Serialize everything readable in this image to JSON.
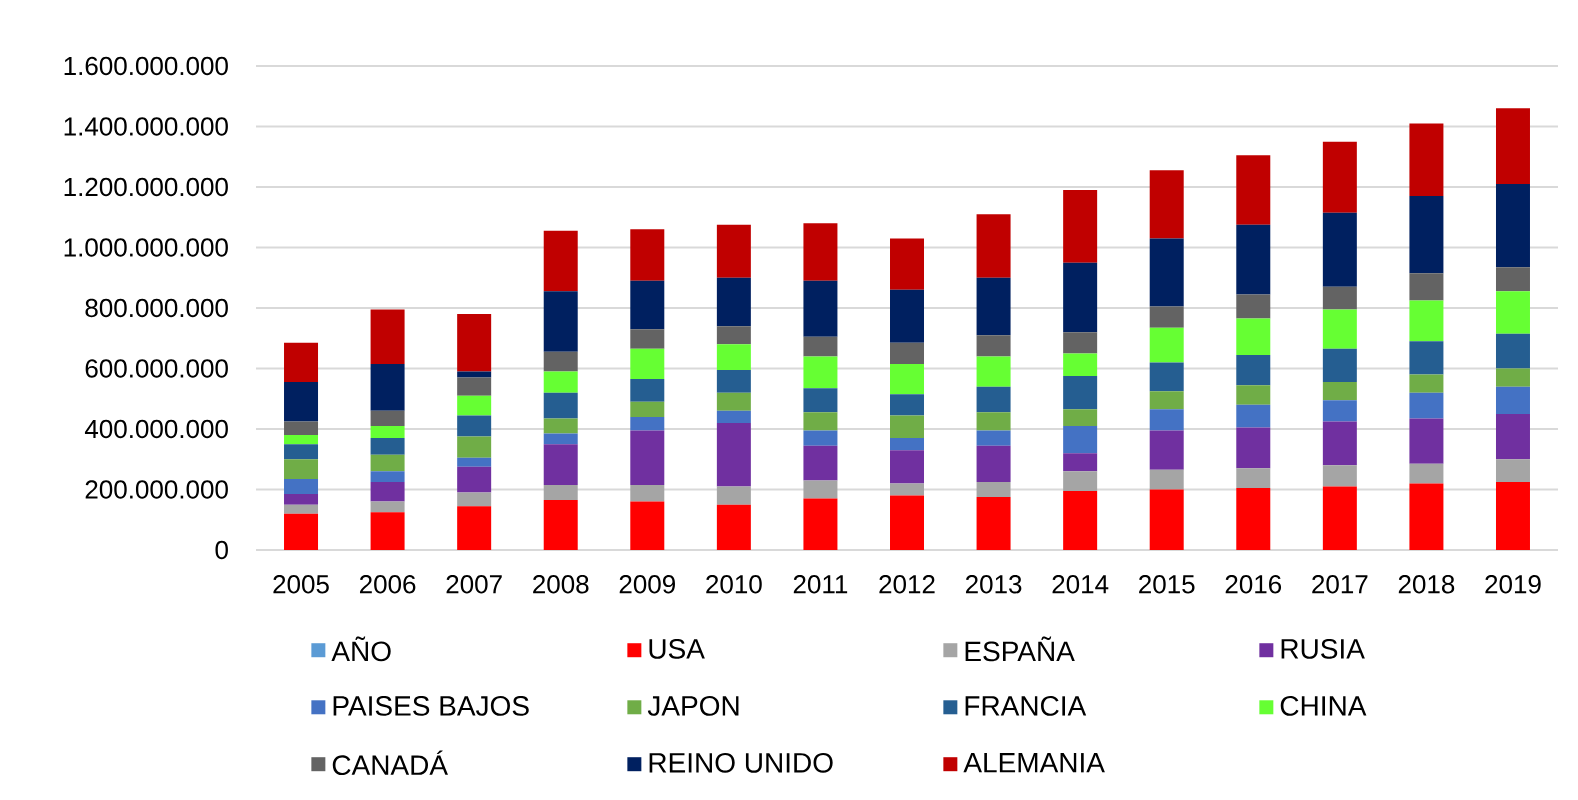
{
  "chart_data": {
    "type": "bar",
    "stacked": true,
    "categories": [
      "2005",
      "2006",
      "2007",
      "2008",
      "2009",
      "2010",
      "2011",
      "2012",
      "2013",
      "2014",
      "2015",
      "2016",
      "2017",
      "2018",
      "2019"
    ],
    "series": [
      {
        "name": "AÑO",
        "color": "#5B9BD5",
        "values": [
          null,
          null,
          null,
          null,
          null,
          null,
          null,
          null,
          null,
          null,
          null,
          null,
          null,
          null,
          null
        ]
      },
      {
        "name": "USA",
        "color": "#FF0000",
        "values": [
          120000000,
          125000000,
          145000000,
          165000000,
          160000000,
          150000000,
          170000000,
          180000000,
          175000000,
          195000000,
          200000000,
          205000000,
          210000000,
          220000000,
          225000000
        ]
      },
      {
        "name": "ESPAÑA",
        "color": "#A5A5A5",
        "values": [
          30000000,
          35000000,
          45000000,
          50000000,
          55000000,
          60000000,
          60000000,
          40000000,
          50000000,
          65000000,
          65000000,
          65000000,
          70000000,
          65000000,
          75000000
        ]
      },
      {
        "name": "RUSIA",
        "color": "#7030A0",
        "values": [
          35000000,
          65000000,
          85000000,
          135000000,
          180000000,
          210000000,
          115000000,
          110000000,
          120000000,
          60000000,
          130000000,
          135000000,
          145000000,
          150000000,
          150000000
        ]
      },
      {
        "name": "PAISES BAJOS",
        "color": "#4472C4",
        "values": [
          50000000,
          35000000,
          30000000,
          35000000,
          45000000,
          40000000,
          50000000,
          40000000,
          50000000,
          90000000,
          70000000,
          75000000,
          70000000,
          85000000,
          90000000
        ]
      },
      {
        "name": "JAPON",
        "color": "#70AD47",
        "values": [
          65000000,
          55000000,
          70000000,
          50000000,
          50000000,
          60000000,
          60000000,
          75000000,
          60000000,
          55000000,
          60000000,
          65000000,
          60000000,
          60000000,
          60000000
        ]
      },
      {
        "name": "FRANCIA",
        "color": "#255E91",
        "values": [
          50000000,
          55000000,
          70000000,
          85000000,
          75000000,
          75000000,
          80000000,
          70000000,
          85000000,
          110000000,
          95000000,
          100000000,
          110000000,
          110000000,
          115000000
        ]
      },
      {
        "name": "CHINA",
        "color": "#66FF33",
        "values": [
          30000000,
          40000000,
          65000000,
          70000000,
          100000000,
          85000000,
          105000000,
          100000000,
          100000000,
          75000000,
          115000000,
          120000000,
          130000000,
          135000000,
          140000000
        ]
      },
      {
        "name": "CANADÁ",
        "color": "#636363",
        "values": [
          45000000,
          50000000,
          60000000,
          65000000,
          65000000,
          60000000,
          65000000,
          70000000,
          70000000,
          70000000,
          70000000,
          80000000,
          75000000,
          90000000,
          80000000
        ]
      },
      {
        "name": "REINO UNIDO",
        "color": "#002060",
        "values": [
          130000000,
          155000000,
          20000000,
          200000000,
          160000000,
          160000000,
          185000000,
          175000000,
          190000000,
          230000000,
          225000000,
          230000000,
          245000000,
          255000000,
          275000000
        ]
      },
      {
        "name": "ALEMANIA",
        "color": "#C00000",
        "values": [
          130000000,
          180000000,
          190000000,
          200000000,
          170000000,
          175000000,
          190000000,
          170000000,
          210000000,
          240000000,
          225000000,
          230000000,
          235000000,
          240000000,
          250000000
        ]
      }
    ],
    "ylim": [
      0,
      1600000000
    ],
    "yticks": [
      0,
      {
        "value": 200000000,
        "label": "200.000.000"
      },
      {
        "value": 400000000,
        "label": "400.000.000"
      },
      {
        "value": 600000000,
        "label": "600.000.000"
      },
      {
        "value": 800000000,
        "label": "800.000.000"
      },
      {
        "value": 1000000000,
        "label": "1.000.000.000"
      },
      {
        "value": 1200000000,
        "label": "1.200.000.000"
      },
      {
        "value": 1400000000,
        "label": "1.400.000.000"
      },
      {
        "value": 1600000000,
        "label": "1.600.000.000"
      }
    ],
    "grid": "y",
    "legend": "bottom"
  }
}
